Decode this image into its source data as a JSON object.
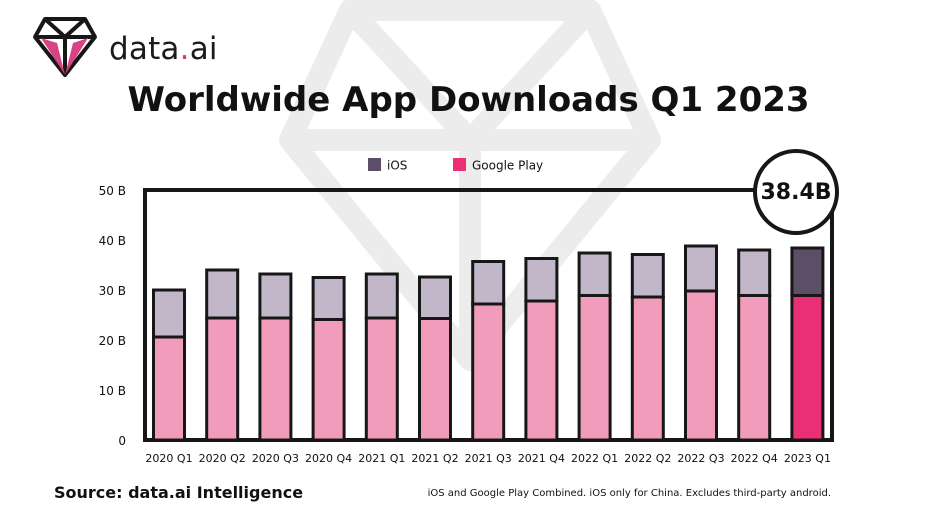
{
  "brand": {
    "name_main": "data",
    "name_dot": ".",
    "name_suffix": "ai"
  },
  "title": "Worldwide App Downloads Q1 2023",
  "callout": "38.4B",
  "legend": {
    "ios": "iOS",
    "google_play": "Google Play"
  },
  "footer": {
    "source": "Source: data.ai Intelligence",
    "note": "iOS and Google Play Combined. iOS only for China. Excludes third-party android."
  },
  "colors": {
    "ios": "#c1b7c8",
    "google_play": "#f29cbc",
    "ios_highlight": "#5d4d67",
    "google_play_highlight": "#ea2f77",
    "outline": "#171717",
    "watermark": "#ececec",
    "brand_accent": "#d63a7b"
  },
  "chart_data": {
    "type": "bar",
    "stacked": true,
    "title": "Worldwide App Downloads Q1 2023",
    "xlabel": "",
    "ylabel": "",
    "categories": [
      "2020 Q1",
      "2020 Q2",
      "2020 Q3",
      "2020 Q4",
      "2021 Q1",
      "2021 Q2",
      "2021 Q3",
      "2021 Q4",
      "2022 Q1",
      "2022 Q2",
      "2022 Q3",
      "2022 Q4",
      "2023 Q1"
    ],
    "series": [
      {
        "name": "Google Play",
        "values": [
          20.6,
          24.4,
          24.4,
          24.1,
          24.4,
          24.3,
          27.2,
          27.8,
          28.9,
          28.6,
          29.8,
          28.9,
          28.9
        ]
      },
      {
        "name": "iOS",
        "values": [
          9.4,
          9.6,
          8.8,
          8.4,
          8.8,
          8.3,
          8.5,
          8.5,
          8.5,
          8.5,
          9.0,
          9.1,
          9.5
        ]
      }
    ],
    "ylim": [
      0,
      50
    ],
    "y_ticks": [
      {
        "value": 0,
        "label": "0"
      },
      {
        "value": 10,
        "label": "10 B"
      },
      {
        "value": 20,
        "label": "20 B"
      },
      {
        "value": 30,
        "label": "30 B"
      },
      {
        "value": 40,
        "label": "40 B"
      },
      {
        "value": 50,
        "label": "50 B"
      }
    ],
    "annotation": "38.4B",
    "legend_position": "top-center",
    "grid": false
  }
}
